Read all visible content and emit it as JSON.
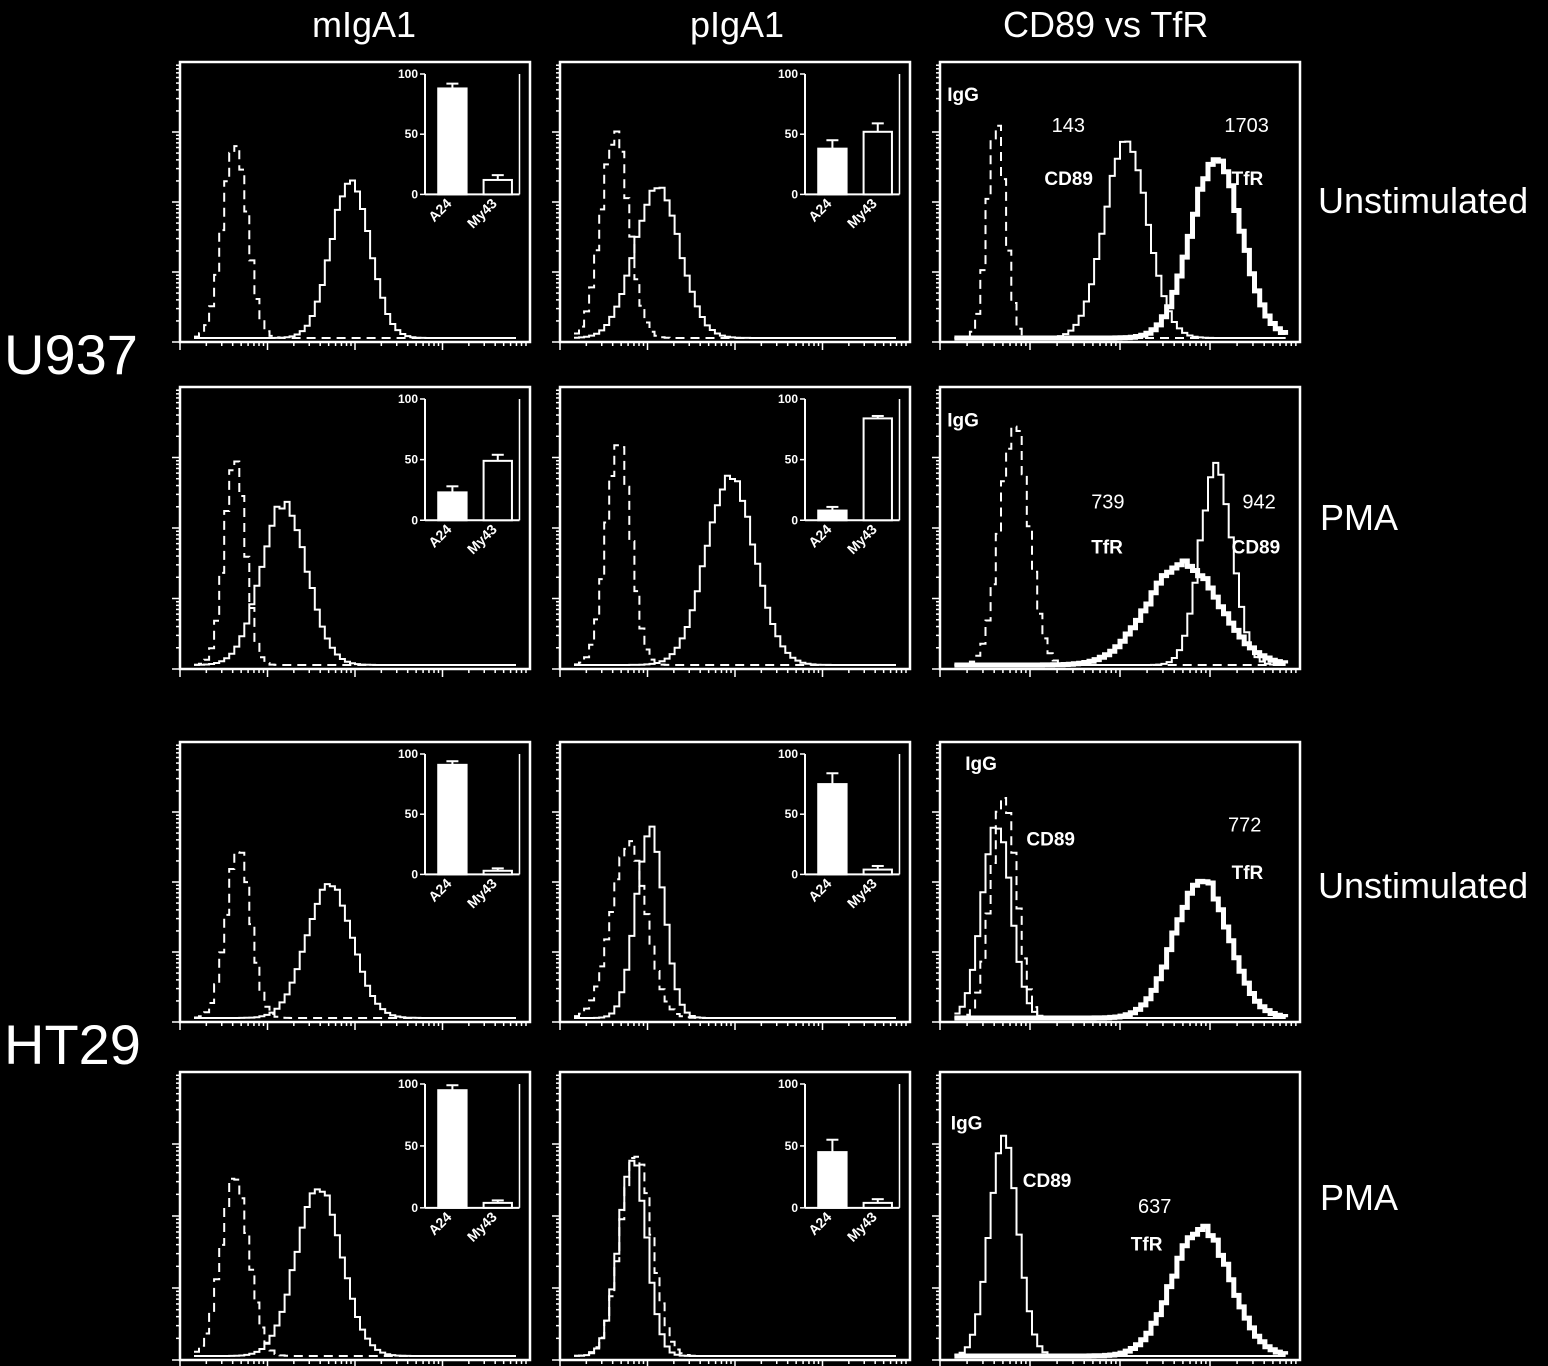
{
  "columns": [
    "mIgA1",
    "pIgA1",
    "CD89 vs TfR"
  ],
  "cell_lines": [
    "U937",
    "HT29"
  ],
  "conditions": [
    "Unstimulated",
    "PMA",
    "Unstimulated",
    "PMA"
  ],
  "chart_data": {
    "type": "panel-grid",
    "description_note": "",
    "panels": [
      {
        "row": 0,
        "col": 0,
        "kind": "histogram",
        "curves": [
          {
            "style": "dashed",
            "peak_x": 0.15,
            "width": 0.035,
            "height": 0.72
          },
          {
            "style": "solid",
            "peak_x": 0.48,
            "width": 0.055,
            "height": 0.58
          }
        ],
        "inset": {
          "type": "bar",
          "categories": [
            "A24",
            "My43"
          ],
          "ylim": [
            0,
            100
          ],
          "yticks": [
            0,
            50,
            100
          ],
          "bars": [
            {
              "value": 88,
              "err": 4,
              "fill": "filled"
            },
            {
              "value": 12,
              "err": 4,
              "fill": "open"
            }
          ]
        }
      },
      {
        "row": 0,
        "col": 1,
        "kind": "histogram",
        "curves": [
          {
            "style": "dashed",
            "peak_x": 0.15,
            "width": 0.04,
            "height": 0.75
          },
          {
            "style": "solid",
            "peak_x": 0.27,
            "width": 0.065,
            "height": 0.55
          }
        ],
        "inset": {
          "type": "bar",
          "categories": [
            "A24",
            "My43"
          ],
          "ylim": [
            0,
            100
          ],
          "yticks": [
            0,
            50,
            100
          ],
          "bars": [
            {
              "value": 38,
              "err": 7,
              "fill": "filled"
            },
            {
              "value": 52,
              "err": 7,
              "fill": "open"
            }
          ]
        }
      },
      {
        "row": 0,
        "col": 2,
        "kind": "histogram",
        "curves": [
          {
            "style": "dashed",
            "peak_x": 0.15,
            "width": 0.025,
            "height": 0.8
          },
          {
            "style": "solid",
            "peak_x": 0.51,
            "width": 0.06,
            "height": 0.72
          },
          {
            "style": "thick",
            "peak_x": 0.76,
            "width": 0.07,
            "height": 0.66
          }
        ],
        "labels": [
          {
            "text": "IgG",
            "bold": true,
            "x": 0.02,
            "y": 0.14
          },
          {
            "text": "143",
            "bold": false,
            "x": 0.31,
            "y": 0.25
          },
          {
            "text": "CD89",
            "bold": true,
            "x": 0.29,
            "y": 0.44
          },
          {
            "text": "1703",
            "bold": false,
            "x": 0.79,
            "y": 0.25
          },
          {
            "text": "TfR",
            "bold": true,
            "x": 0.81,
            "y": 0.44
          }
        ]
      },
      {
        "row": 1,
        "col": 0,
        "kind": "histogram",
        "curves": [
          {
            "style": "dashed",
            "peak_x": 0.15,
            "width": 0.03,
            "height": 0.75
          },
          {
            "style": "solid",
            "peak_x": 0.29,
            "width": 0.065,
            "height": 0.59
          }
        ],
        "inset": {
          "type": "bar",
          "categories": [
            "A24",
            "My43"
          ],
          "ylim": [
            0,
            100
          ],
          "yticks": [
            0,
            50,
            100
          ],
          "bars": [
            {
              "value": 23,
              "err": 5,
              "fill": "filled"
            },
            {
              "value": 49,
              "err": 5,
              "fill": "open"
            }
          ]
        }
      },
      {
        "row": 1,
        "col": 1,
        "kind": "histogram",
        "curves": [
          {
            "style": "dashed",
            "peak_x": 0.16,
            "width": 0.035,
            "height": 0.82
          },
          {
            "style": "solid",
            "peak_x": 0.48,
            "width": 0.07,
            "height": 0.68
          }
        ],
        "inset": {
          "type": "bar",
          "categories": [
            "A24",
            "My43"
          ],
          "ylim": [
            0,
            100
          ],
          "yticks": [
            0,
            50,
            100
          ],
          "bars": [
            {
              "value": 8,
              "err": 3,
              "fill": "filled"
            },
            {
              "value": 84,
              "err": 2,
              "fill": "open"
            }
          ]
        }
      },
      {
        "row": 1,
        "col": 2,
        "kind": "histogram",
        "curves": [
          {
            "style": "dashed",
            "peak_x": 0.2,
            "width": 0.04,
            "height": 0.88
          },
          {
            "style": "thick",
            "peak_x": 0.67,
            "width": 0.1,
            "height": 0.37
          },
          {
            "style": "solid",
            "peak_x": 0.76,
            "width": 0.045,
            "height": 0.72
          }
        ],
        "labels": [
          {
            "text": "IgG",
            "bold": true,
            "x": 0.02,
            "y": 0.14
          },
          {
            "text": "739",
            "bold": false,
            "x": 0.42,
            "y": 0.43
          },
          {
            "text": "TfR",
            "bold": true,
            "x": 0.42,
            "y": 0.59
          },
          {
            "text": "942",
            "bold": false,
            "x": 0.84,
            "y": 0.43
          },
          {
            "text": "CD89",
            "bold": true,
            "x": 0.81,
            "y": 0.59
          }
        ]
      },
      {
        "row": 2,
        "col": 0,
        "kind": "histogram",
        "curves": [
          {
            "style": "dashed",
            "peak_x": 0.16,
            "width": 0.035,
            "height": 0.62
          },
          {
            "style": "solid",
            "peak_x": 0.42,
            "width": 0.065,
            "height": 0.49
          }
        ],
        "inset": {
          "type": "bar",
          "categories": [
            "A24",
            "My43"
          ],
          "ylim": [
            0,
            100
          ],
          "yticks": [
            0,
            50,
            100
          ],
          "bars": [
            {
              "value": 91,
              "err": 3,
              "fill": "filled"
            },
            {
              "value": 3,
              "err": 2,
              "fill": "open"
            }
          ]
        }
      },
      {
        "row": 2,
        "col": 1,
        "kind": "histogram",
        "curves": [
          {
            "style": "dashed",
            "peak_x": 0.19,
            "width": 0.05,
            "height": 0.64
          },
          {
            "style": "solid",
            "peak_x": 0.25,
            "width": 0.04,
            "height": 0.7
          }
        ],
        "inset": {
          "type": "bar",
          "categories": [
            "A24",
            "My43"
          ],
          "ylim": [
            0,
            100
          ],
          "yticks": [
            0,
            50,
            100
          ],
          "bars": [
            {
              "value": 75,
              "err": 9,
              "fill": "filled"
            },
            {
              "value": 4,
              "err": 3,
              "fill": "open"
            }
          ]
        }
      },
      {
        "row": 2,
        "col": 2,
        "kind": "histogram",
        "curves": [
          {
            "style": "dashed",
            "peak_x": 0.17,
            "width": 0.035,
            "height": 0.82
          },
          {
            "style": "solid",
            "peak_x": 0.15,
            "width": 0.04,
            "height": 0.72
          },
          {
            "style": "thick",
            "peak_x": 0.72,
            "width": 0.075,
            "height": 0.51
          }
        ],
        "labels": [
          {
            "text": "IgG",
            "bold": true,
            "x": 0.07,
            "y": 0.1
          },
          {
            "text": "CD89",
            "bold": true,
            "x": 0.24,
            "y": 0.37
          },
          {
            "text": "772",
            "bold": false,
            "x": 0.8,
            "y": 0.32
          },
          {
            "text": "TfR",
            "bold": true,
            "x": 0.81,
            "y": 0.49
          }
        ]
      },
      {
        "row": 3,
        "col": 0,
        "kind": "histogram",
        "curves": [
          {
            "style": "dashed",
            "peak_x": 0.15,
            "width": 0.04,
            "height": 0.64
          },
          {
            "style": "solid",
            "peak_x": 0.39,
            "width": 0.065,
            "height": 0.6
          }
        ],
        "inset": {
          "type": "bar",
          "categories": [
            "A24",
            "My43"
          ],
          "ylim": [
            0,
            100
          ],
          "yticks": [
            0,
            50,
            100
          ],
          "bars": [
            {
              "value": 95,
              "err": 4,
              "fill": "filled"
            },
            {
              "value": 4,
              "err": 2,
              "fill": "open"
            }
          ]
        }
      },
      {
        "row": 3,
        "col": 1,
        "kind": "histogram",
        "curves": [
          {
            "style": "dashed",
            "peak_x": 0.21,
            "width": 0.045,
            "height": 0.72
          },
          {
            "style": "solid",
            "peak_x": 0.2,
            "width": 0.04,
            "height": 0.7
          }
        ],
        "inset": {
          "type": "bar",
          "categories": [
            "A24",
            "My43"
          ],
          "ylim": [
            0,
            100
          ],
          "yticks": [
            0,
            50,
            100
          ],
          "bars": [
            {
              "value": 45,
              "err": 10,
              "fill": "filled"
            },
            {
              "value": 4,
              "err": 3,
              "fill": "open"
            }
          ]
        }
      },
      {
        "row": 3,
        "col": 2,
        "kind": "histogram",
        "curves": [
          {
            "style": "solid",
            "peak_x": 0.17,
            "width": 0.04,
            "height": 0.78
          },
          {
            "style": "thick",
            "peak_x": 0.72,
            "width": 0.08,
            "height": 0.46
          }
        ],
        "labels": [
          {
            "text": "IgG",
            "bold": true,
            "x": 0.03,
            "y": 0.2
          },
          {
            "text": "CD89",
            "bold": true,
            "x": 0.23,
            "y": 0.4
          },
          {
            "text": "637",
            "bold": false,
            "x": 0.55,
            "y": 0.49
          },
          {
            "text": "TfR",
            "bold": true,
            "x": 0.53,
            "y": 0.62
          }
        ]
      }
    ]
  }
}
